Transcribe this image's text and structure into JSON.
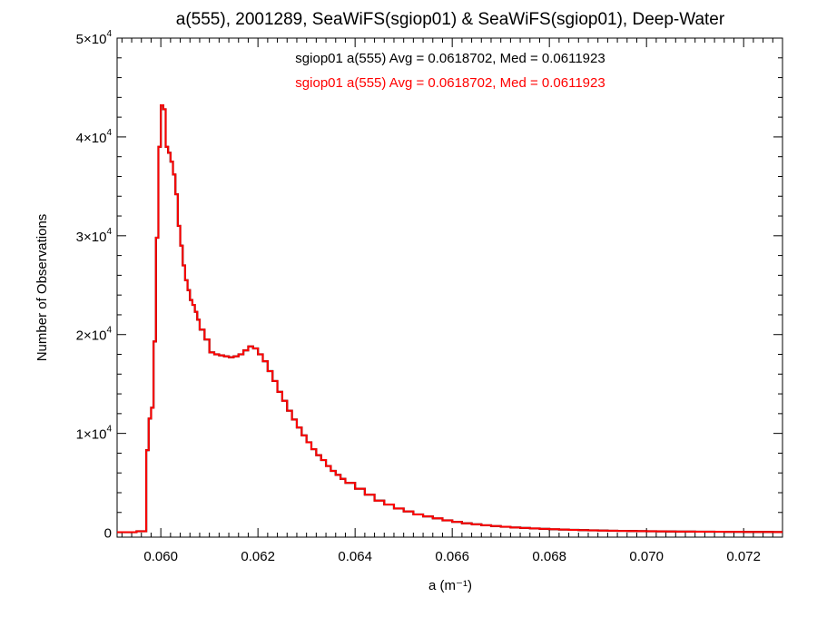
{
  "chart_data": {
    "type": "line",
    "title": "a(555), 2001289, SeaWiFS(sgiop01) & SeaWiFS(sgiop01), Deep-Water",
    "xlabel": "a (m⁻¹)",
    "ylabel": "Number of Observations",
    "xlim": [
      0.0591,
      0.0728
    ],
    "ylim": [
      -500,
      50000
    ],
    "x_ticks": [
      0.06,
      0.062,
      0.064,
      0.066,
      0.068,
      0.07,
      0.072
    ],
    "x_tick_labels": [
      "0.060",
      "0.062",
      "0.064",
      "0.066",
      "0.068",
      "0.070",
      "0.072"
    ],
    "y_ticks": [
      0,
      10000,
      20000,
      30000,
      40000,
      50000
    ],
    "y_tick_labels": [
      {
        "value": 0,
        "mantissa": "0",
        "exponent": ""
      },
      {
        "value": 10000,
        "mantissa": "1×10",
        "exponent": "4"
      },
      {
        "value": 20000,
        "mantissa": "2×10",
        "exponent": "4"
      },
      {
        "value": 30000,
        "mantissa": "3×10",
        "exponent": "4"
      },
      {
        "value": 40000,
        "mantissa": "4×10",
        "exponent": "4"
      },
      {
        "value": 50000,
        "mantissa": "5×10",
        "exponent": "4"
      }
    ],
    "grid": false,
    "annotations": [
      {
        "text": "sgiop01 a(555) Avg = 0.0618702, Med = 0.0611923",
        "color": "#000000"
      },
      {
        "text": "sgiop01 a(555) Avg = 0.0618702, Med = 0.0611923",
        "color": "#ff0000"
      }
    ],
    "series": [
      {
        "color": "#ff0000",
        "secondary_color": "#000000",
        "style": "step",
        "x": [
          0.0591,
          0.0595,
          0.0597,
          0.05975,
          0.0598,
          0.05985,
          0.0599,
          0.05995,
          0.06,
          0.06005,
          0.0601,
          0.06015,
          0.0602,
          0.06025,
          0.0603,
          0.06035,
          0.0604,
          0.06045,
          0.0605,
          0.06055,
          0.0606,
          0.06065,
          0.0607,
          0.06075,
          0.0608,
          0.0609,
          0.061,
          0.0611,
          0.0612,
          0.0613,
          0.0614,
          0.0615,
          0.0616,
          0.0617,
          0.0618,
          0.0619,
          0.062,
          0.0621,
          0.0622,
          0.0623,
          0.0624,
          0.0625,
          0.0626,
          0.0627,
          0.0628,
          0.0629,
          0.063,
          0.0631,
          0.0632,
          0.0633,
          0.0634,
          0.0635,
          0.0636,
          0.0637,
          0.0638,
          0.064,
          0.0642,
          0.0644,
          0.0646,
          0.0648,
          0.065,
          0.0652,
          0.0654,
          0.0656,
          0.0658,
          0.066,
          0.0662,
          0.0664,
          0.0666,
          0.0668,
          0.067,
          0.0672,
          0.0674,
          0.0676,
          0.0678,
          0.068,
          0.0682,
          0.0684,
          0.0686,
          0.0688,
          0.069,
          0.0692,
          0.0694,
          0.0696,
          0.0698,
          0.07,
          0.0702,
          0.0704,
          0.0706,
          0.0708,
          0.071,
          0.0712,
          0.0714,
          0.0716,
          0.0718,
          0.072,
          0.0722,
          0.0724,
          0.0726
        ],
        "values": [
          0,
          100,
          8300,
          11500,
          12600,
          19300,
          29800,
          39000,
          43200,
          42800,
          39000,
          38400,
          37500,
          36200,
          34200,
          31000,
          29000,
          27000,
          25500,
          24500,
          23500,
          23000,
          22300,
          21500,
          20500,
          19500,
          18200,
          18000,
          17900,
          17800,
          17700,
          17800,
          18000,
          18400,
          18800,
          18600,
          18000,
          17300,
          16300,
          15300,
          14200,
          13300,
          12300,
          11400,
          10600,
          9800,
          9100,
          8400,
          7800,
          7300,
          6700,
          6200,
          5800,
          5400,
          5000,
          4400,
          3800,
          3200,
          2800,
          2400,
          2100,
          1800,
          1600,
          1400,
          1200,
          1050,
          900,
          800,
          700,
          620,
          550,
          480,
          430,
          380,
          340,
          300,
          270,
          240,
          210,
          190,
          170,
          150,
          135,
          120,
          105,
          95,
          85,
          75,
          65,
          60,
          55,
          50,
          45,
          40,
          35,
          30,
          28,
          25,
          20
        ]
      }
    ]
  }
}
